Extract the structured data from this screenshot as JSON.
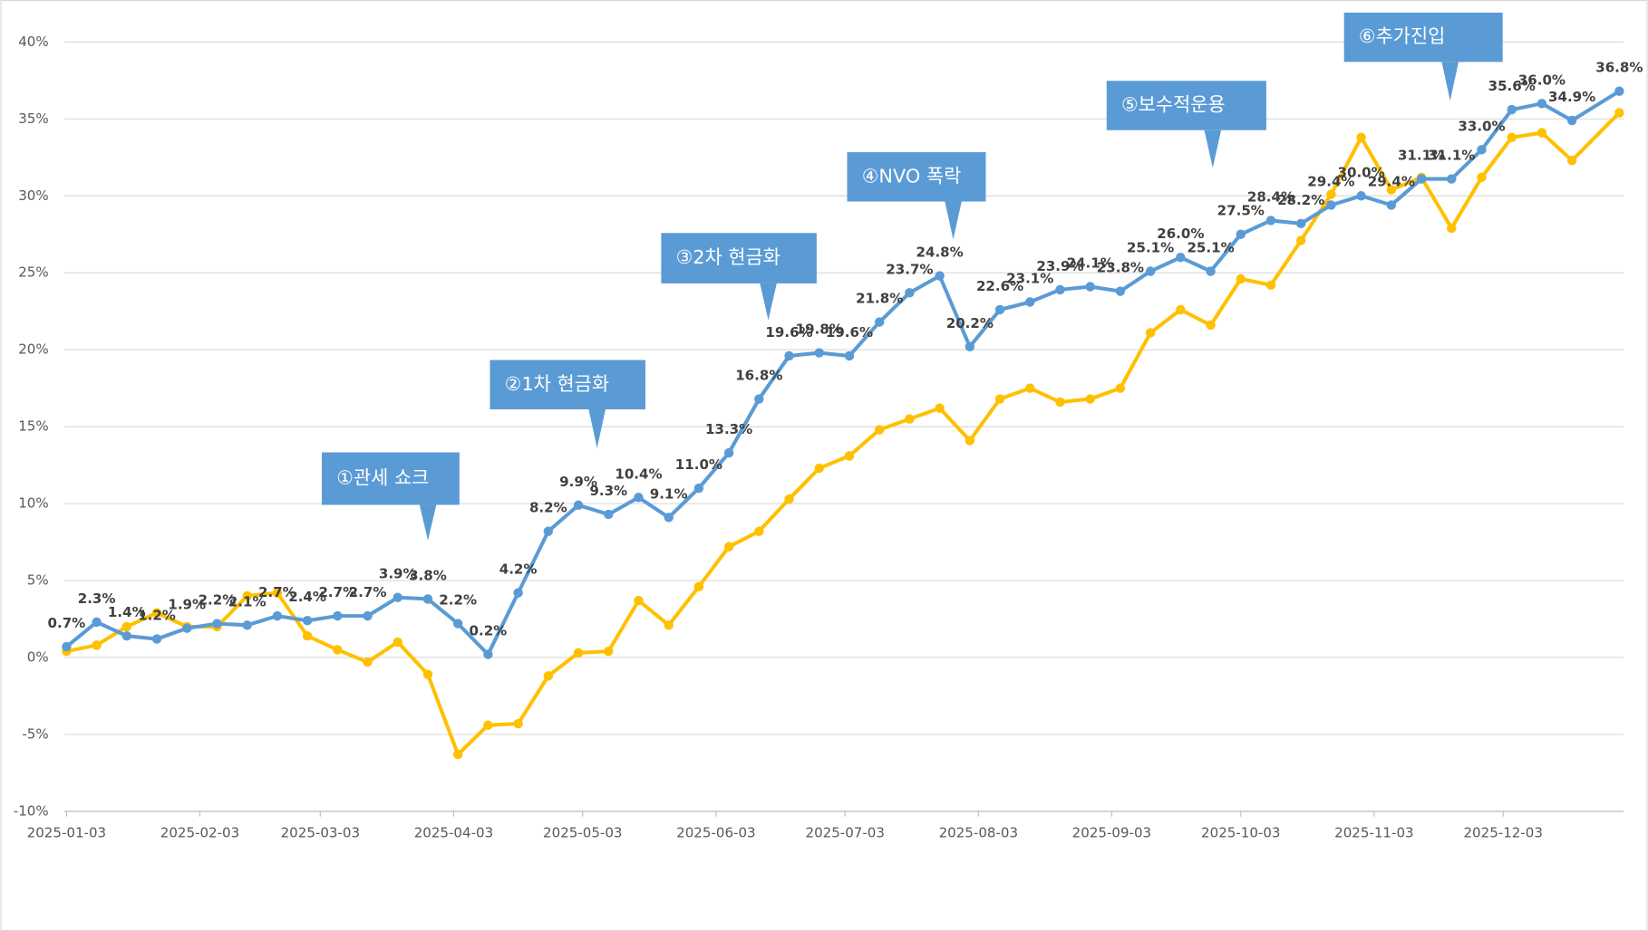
{
  "chart_data": {
    "type": "line",
    "x": [
      "2025-01-03",
      "2025-01-10",
      "2025-01-17",
      "2025-01-24",
      "2025-01-31",
      "2025-02-07",
      "2025-02-14",
      "2025-02-21",
      "2025-02-28",
      "2025-03-07",
      "2025-03-14",
      "2025-03-21",
      "2025-03-28",
      "2025-04-04",
      "2025-04-11",
      "2025-04-18",
      "2025-04-25",
      "2025-05-02",
      "2025-05-09",
      "2025-05-16",
      "2025-05-23",
      "2025-05-30",
      "2025-06-06",
      "2025-06-13",
      "2025-06-20",
      "2025-06-27",
      "2025-07-04",
      "2025-07-11",
      "2025-07-18",
      "2025-07-25",
      "2025-08-01",
      "2025-08-08",
      "2025-08-15",
      "2025-08-22",
      "2025-08-29",
      "2025-09-05",
      "2025-09-12",
      "2025-09-19",
      "2025-09-26",
      "2025-10-03",
      "2025-10-10",
      "2025-10-17",
      "2025-10-24",
      "2025-10-31",
      "2025-11-07",
      "2025-11-14",
      "2025-11-21",
      "2025-11-28",
      "2025-12-05",
      "2025-12-12",
      "2025-12-19",
      "2025-12-30"
    ],
    "series": [
      {
        "color": "#5b9bd5",
        "values": [
          0.7,
          2.3,
          1.4,
          1.2,
          1.9,
          2.2,
          2.1,
          2.7,
          2.4,
          2.7,
          2.7,
          3.9,
          3.8,
          2.2,
          0.2,
          4.2,
          8.2,
          9.9,
          9.3,
          10.4,
          9.1,
          11.0,
          13.3,
          16.8,
          19.6,
          19.8,
          19.6,
          21.8,
          23.7,
          24.8,
          20.2,
          22.6,
          23.1,
          23.9,
          24.1,
          23.8,
          25.1,
          26.0,
          25.1,
          27.5,
          28.4,
          28.2,
          29.4,
          30.0,
          29.4,
          31.1,
          31.1,
          33.0,
          35.6,
          36.0,
          34.9,
          36.8
        ],
        "value_labels": [
          "0.7%",
          "2.3%",
          "1.4%",
          "1.2%",
          "1.9%",
          "2.2%",
          "2.1%",
          "2.7%",
          "2.4%",
          "2.7%",
          "2.7%",
          "3.9%",
          "3.8%",
          "2.2%",
          "0.2%",
          "4.2%",
          "8.2%",
          "9.9%",
          "9.3%",
          "10.4%",
          "9.1%",
          "11.0%",
          "13.3%",
          "16.8%",
          "19.6%",
          "19.8%",
          "19.6%",
          "21.8%",
          "23.7%",
          "24.8%",
          "20.2%",
          "22.6%",
          "23.1%",
          "23.9%",
          "24.1%",
          "23.8%",
          "25.1%",
          "26.0%",
          "25.1%",
          "27.5%",
          "28.4%",
          "28.2%",
          "29.4%",
          "30.0%",
          "29.4%",
          "31.1%",
          "31.1%",
          "33.0%",
          "35.6%",
          "36.0%",
          "34.9%",
          "36.8%"
        ]
      },
      {
        "color": "#ffc000",
        "values": [
          0.4,
          0.8,
          2.0,
          2.9,
          2.0,
          2.0,
          4.0,
          4.2,
          1.4,
          0.5,
          -0.3,
          1.0,
          -1.1,
          -6.3,
          -4.4,
          -4.3,
          -1.2,
          0.3,
          0.4,
          3.7,
          2.1,
          4.6,
          7.2,
          8.2,
          10.3,
          12.3,
          13.1,
          14.8,
          15.5,
          16.2,
          14.1,
          16.8,
          17.5,
          16.6,
          16.8,
          17.5,
          21.1,
          22.6,
          21.6,
          24.6,
          24.2,
          27.1,
          30.1,
          33.8,
          30.4,
          31.2,
          27.9,
          31.2,
          33.8,
          34.1,
          32.3,
          35.4
        ]
      }
    ],
    "xlim": [
      "2025-01-03",
      "2025-12-30"
    ],
    "xticks": [
      "2025-01-03",
      "2025-02-03",
      "2025-03-03",
      "2025-04-03",
      "2025-05-03",
      "2025-06-03",
      "2025-07-03",
      "2025-08-03",
      "2025-09-03",
      "2025-10-03",
      "2025-11-03",
      "2025-12-03"
    ],
    "ylim": [
      -10,
      40
    ],
    "yticks": [
      {
        "value": -10,
        "label": "-10%"
      },
      {
        "value": -5,
        "label": "-5%"
      },
      {
        "value": 0,
        "label": "0%"
      },
      {
        "value": 5,
        "label": "5%"
      },
      {
        "value": 10,
        "label": "10%"
      },
      {
        "value": 15,
        "label": "15%"
      },
      {
        "value": 20,
        "label": "20%"
      },
      {
        "value": 25,
        "label": "25%"
      },
      {
        "value": 30,
        "label": "30%"
      },
      {
        "value": 35,
        "label": "35%"
      },
      {
        "value": 40,
        "label": "40%"
      }
    ],
    "grid": true,
    "annotations": [
      "①관세 쇼크",
      "②1차 현금화",
      "③2차 현금화",
      "④NVO 폭락",
      "⑤보수적운용",
      "⑥추가진입"
    ]
  }
}
